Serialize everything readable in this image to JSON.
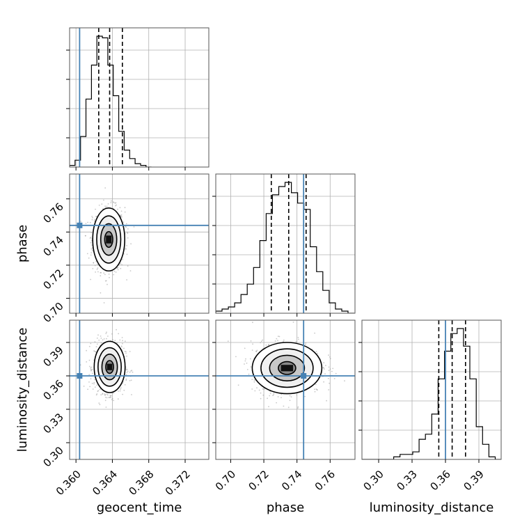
{
  "chart_data": {
    "type": "corner",
    "grid": true,
    "parameters": [
      "geocent_time",
      "phase",
      "luminosity_distance"
    ],
    "truth_values": [
      0.3604,
      0.744,
      0.36
    ],
    "truth_color": "#4682b4",
    "quantiles": [
      [
        0.3625,
        0.3637,
        0.3651
      ],
      [
        0.7245,
        0.735,
        0.7455
      ],
      [
        0.354,
        0.366,
        0.378
      ]
    ],
    "axis_ranges": [
      [
        0.3593,
        0.3746
      ],
      [
        0.691,
        0.775
      ],
      [
        0.285,
        0.41
      ]
    ],
    "ticks": [
      [
        "0.360",
        "0.364",
        "0.368",
        "0.372"
      ],
      [
        "0.70",
        "0.72",
        "0.74",
        "0.76"
      ],
      [
        "0.30",
        "0.33",
        "0.36",
        "0.39"
      ]
    ],
    "histograms": [
      {
        "name": "geocent_time",
        "bins": [
          0.3593,
          0.3599,
          0.3605,
          0.3611,
          0.3617,
          0.3623,
          0.3629,
          0.3635,
          0.3641,
          0.3647,
          0.3653,
          0.3659,
          0.3665,
          0.3671,
          0.3677,
          0.3683
        ],
        "counts": [
          1,
          4,
          18,
          40,
          60,
          77,
          76,
          60,
          42,
          21,
          10,
          5,
          2,
          1,
          0
        ]
      },
      {
        "name": "phase",
        "bins": [
          0.691,
          0.6948,
          0.6986,
          0.7024,
          0.7062,
          0.71,
          0.7138,
          0.7176,
          0.7214,
          0.7252,
          0.729,
          0.7328,
          0.7366,
          0.7404,
          0.7442,
          0.748,
          0.7518,
          0.7556,
          0.7594,
          0.7632,
          0.767,
          0.7708,
          0.7746
        ],
        "counts": [
          1,
          2,
          3,
          5,
          9,
          14,
          22,
          35,
          48,
          57,
          61,
          63,
          58,
          53,
          50,
          32,
          20,
          11,
          5,
          2,
          1,
          0
        ]
      },
      {
        "name": "luminosity_distance",
        "bins": [
          0.285,
          0.2907,
          0.2964,
          0.3021,
          0.3078,
          0.3135,
          0.3192,
          0.3249,
          0.3306,
          0.3363,
          0.342,
          0.3477,
          0.3534,
          0.3591,
          0.3648,
          0.3705,
          0.3762,
          0.3819,
          0.3876,
          0.3933,
          0.399,
          0.4047,
          0.4104
        ],
        "counts": [
          0,
          0,
          0,
          0,
          0,
          1,
          2,
          2,
          3,
          8,
          10,
          18,
          32,
          43,
          50,
          52,
          45,
          32,
          13,
          6,
          1,
          0
        ]
      }
    ],
    "posterior_2d": [
      {
        "x": "geocent_time",
        "y": "phase",
        "mean": [
          0.3636,
          0.7355
        ],
        "sd": [
          0.00088,
          0.0095
        ],
        "corr": 0.0
      },
      {
        "x": "geocent_time",
        "y": "luminosity_distance",
        "mean": [
          0.3637,
          0.368
        ],
        "sd": [
          0.00085,
          0.0115
        ],
        "corr": 0.0
      },
      {
        "x": "phase",
        "y": "luminosity_distance",
        "mean": [
          0.734,
          0.367
        ],
        "sd": [
          0.0105,
          0.0115
        ],
        "corr": 0.0
      }
    ]
  }
}
